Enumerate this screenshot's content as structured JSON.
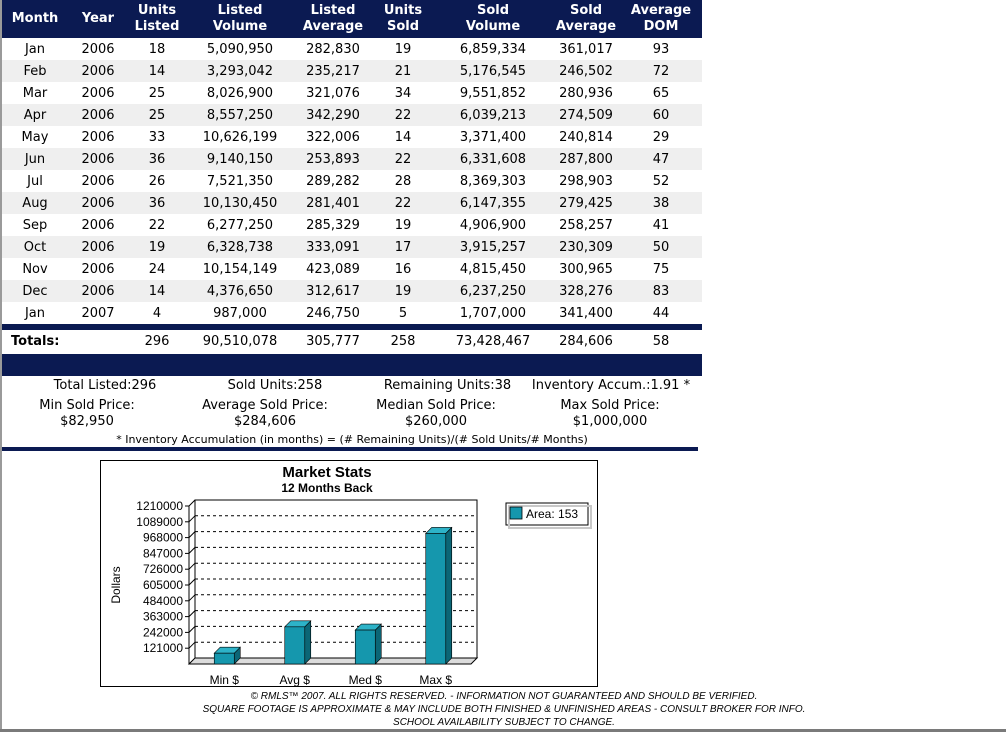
{
  "table": {
    "headers": {
      "month": "Month",
      "year": "Year",
      "units_listed": [
        "Units",
        "Listed"
      ],
      "listed_volume": [
        "Listed",
        "Volume"
      ],
      "listed_average": [
        "Listed",
        "Average"
      ],
      "units_sold": [
        "Units",
        "Sold"
      ],
      "sold_volume": [
        "Sold",
        "Volume"
      ],
      "sold_average": [
        "Sold",
        "Average"
      ],
      "average_dom": [
        "Average",
        "DOM"
      ]
    },
    "rows": [
      [
        "Jan",
        "2006",
        "18",
        "5,090,950",
        "282,830",
        "19",
        "6,859,334",
        "361,017",
        "93"
      ],
      [
        "Feb",
        "2006",
        "14",
        "3,293,042",
        "235,217",
        "21",
        "5,176,545",
        "246,502",
        "72"
      ],
      [
        "Mar",
        "2006",
        "25",
        "8,026,900",
        "321,076",
        "34",
        "9,551,852",
        "280,936",
        "65"
      ],
      [
        "Apr",
        "2006",
        "25",
        "8,557,250",
        "342,290",
        "22",
        "6,039,213",
        "274,509",
        "60"
      ],
      [
        "May",
        "2006",
        "33",
        "10,626,199",
        "322,006",
        "14",
        "3,371,400",
        "240,814",
        "29"
      ],
      [
        "Jun",
        "2006",
        "36",
        "9,140,150",
        "253,893",
        "22",
        "6,331,608",
        "287,800",
        "47"
      ],
      [
        "Jul",
        "2006",
        "26",
        "7,521,350",
        "289,282",
        "28",
        "8,369,303",
        "298,903",
        "52"
      ],
      [
        "Aug",
        "2006",
        "36",
        "10,130,450",
        "281,401",
        "22",
        "6,147,355",
        "279,425",
        "38"
      ],
      [
        "Sep",
        "2006",
        "22",
        "6,277,250",
        "285,329",
        "19",
        "4,906,900",
        "258,257",
        "41"
      ],
      [
        "Oct",
        "2006",
        "19",
        "6,328,738",
        "333,091",
        "17",
        "3,915,257",
        "230,309",
        "50"
      ],
      [
        "Nov",
        "2006",
        "24",
        "10,154,149",
        "423,089",
        "16",
        "4,815,450",
        "300,965",
        "75"
      ],
      [
        "Dec",
        "2006",
        "14",
        "4,376,650",
        "312,617",
        "19",
        "6,237,250",
        "328,276",
        "83"
      ],
      [
        "Jan",
        "2007",
        "4",
        "987,000",
        "246,750",
        "5",
        "1,707,000",
        "341,400",
        "44"
      ]
    ],
    "totals": {
      "label": "Totals:",
      "units_listed": "296",
      "listed_volume": "90,510,078",
      "listed_average": "305,777",
      "units_sold": "258",
      "sold_volume": "73,428,467",
      "sold_average": "284,606",
      "average_dom": "58"
    }
  },
  "summary": {
    "total_listed": "Total Listed:296",
    "sold_units": "Sold Units:258",
    "remaining_units": "Remaining Units:38",
    "inventory_accum": "Inventory Accum.:1.91 *",
    "min_sold_label": "Min Sold Price:",
    "min_sold_value": "$82,950",
    "avg_sold_label": "Average Sold Price:",
    "avg_sold_value": "$284,606",
    "median_sold_label": "Median Sold Price:",
    "median_sold_value": "$260,000",
    "max_sold_label": "Max Sold Price:",
    "max_sold_value": "$1,000,000",
    "note": "* Inventory Accumulation (in months) = (# Remaining Units)/(# Sold Units/# Months)"
  },
  "colors": {
    "header_bg": "#0b1a52",
    "bar_fill": "#1597ad",
    "bar_side": "#0b6676",
    "bar_top": "#2db3c8"
  },
  "chart_data": {
    "type": "bar",
    "title": "Market Stats",
    "subtitle": "12 Months Back",
    "ylabel": "Dollars",
    "categories": [
      "Min $",
      "Avg $",
      "Med $",
      "Max $"
    ],
    "series": [
      {
        "name": "Area: 153",
        "values": [
          82950,
          284606,
          260000,
          1000000
        ]
      }
    ],
    "yticks": [
      121000,
      242000,
      363000,
      484000,
      605000,
      726000,
      847000,
      968000,
      1089000,
      1210000
    ],
    "ylim": [
      0,
      1210000
    ],
    "grid": true,
    "legend": "right"
  },
  "footer": {
    "line1": "© RMLS™ 2007. ALL RIGHTS RESERVED. - INFORMATION NOT GUARANTEED AND SHOULD BE VERIFIED.",
    "line2": "SQUARE FOOTAGE IS APPROXIMATE & MAY INCLUDE BOTH FINISHED & UNFINISHED AREAS - CONSULT BROKER FOR INFO.",
    "line3": "SCHOOL AVAILABILITY SUBJECT TO CHANGE."
  }
}
